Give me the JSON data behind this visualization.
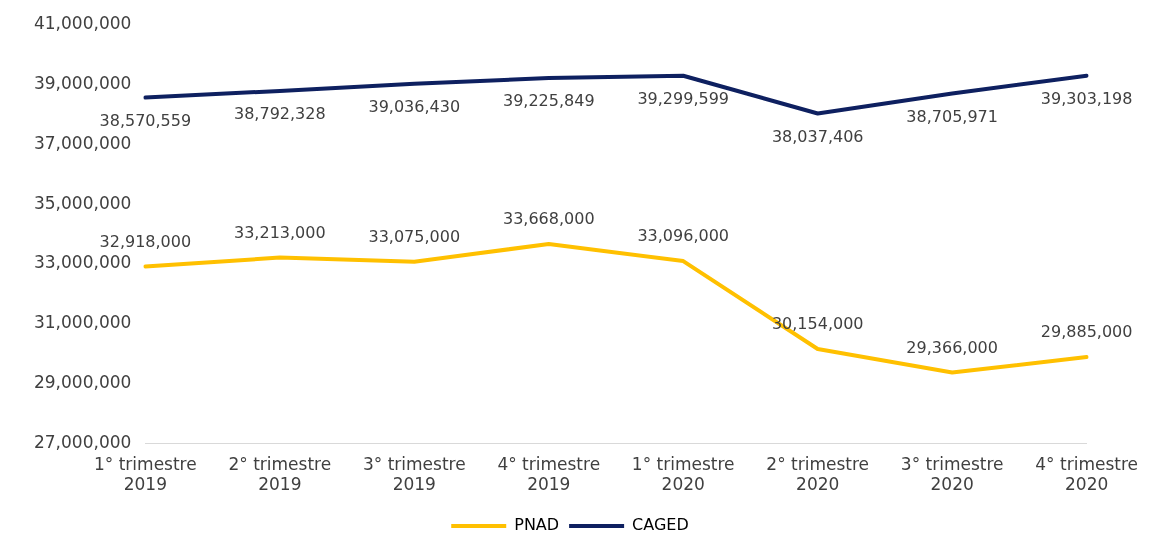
{
  "chart_data": {
    "type": "line",
    "categories": [
      "1° trimestre\n2019",
      "2° trimestre\n2019",
      "3° trimestre\n2019",
      "4° trimestre\n2019",
      "1° trimestre\n2020",
      "2° trimestre\n2020",
      "3° trimestre\n2020",
      "4° trimestre\n2020"
    ],
    "series": [
      {
        "name": "PNAD",
        "color": "#ffc000",
        "values": [
          32918000,
          33213000,
          33075000,
          33668000,
          33096000,
          30154000,
          29366000,
          29885000
        ],
        "value_labels": [
          "32,918,000",
          "33,213,000",
          "33,075,000",
          "33,668,000",
          "33,096,000",
          "30,154,000",
          "29,366,000",
          "29,885,000"
        ]
      },
      {
        "name": "CAGED",
        "color": "#0e2060",
        "values": [
          38570559,
          38792328,
          39036430,
          39225849,
          39299599,
          38037406,
          38705971,
          39303198
        ],
        "value_labels": [
          "38,570,559",
          "38,792,328",
          "39,036,430",
          "39,225,849",
          "39,299,599",
          "38,037,406",
          "38,705,971",
          "39,303,198"
        ]
      }
    ],
    "ylim": [
      27000000,
      41000000
    ],
    "yticks": [
      {
        "value": 27000000,
        "label": "27,000,000"
      },
      {
        "value": 29000000,
        "label": "29,000,000"
      },
      {
        "value": 31000000,
        "label": "31,000,000"
      },
      {
        "value": 33000000,
        "label": "33,000,000"
      },
      {
        "value": 35000000,
        "label": "35,000,000"
      },
      {
        "value": 37000000,
        "label": "37,000,000"
      },
      {
        "value": 39000000,
        "label": "39,000,000"
      },
      {
        "value": 41000000,
        "label": "41,000,000"
      }
    ],
    "grid": false,
    "legend": "bottom",
    "marker": "none",
    "line_style": "solid"
  }
}
